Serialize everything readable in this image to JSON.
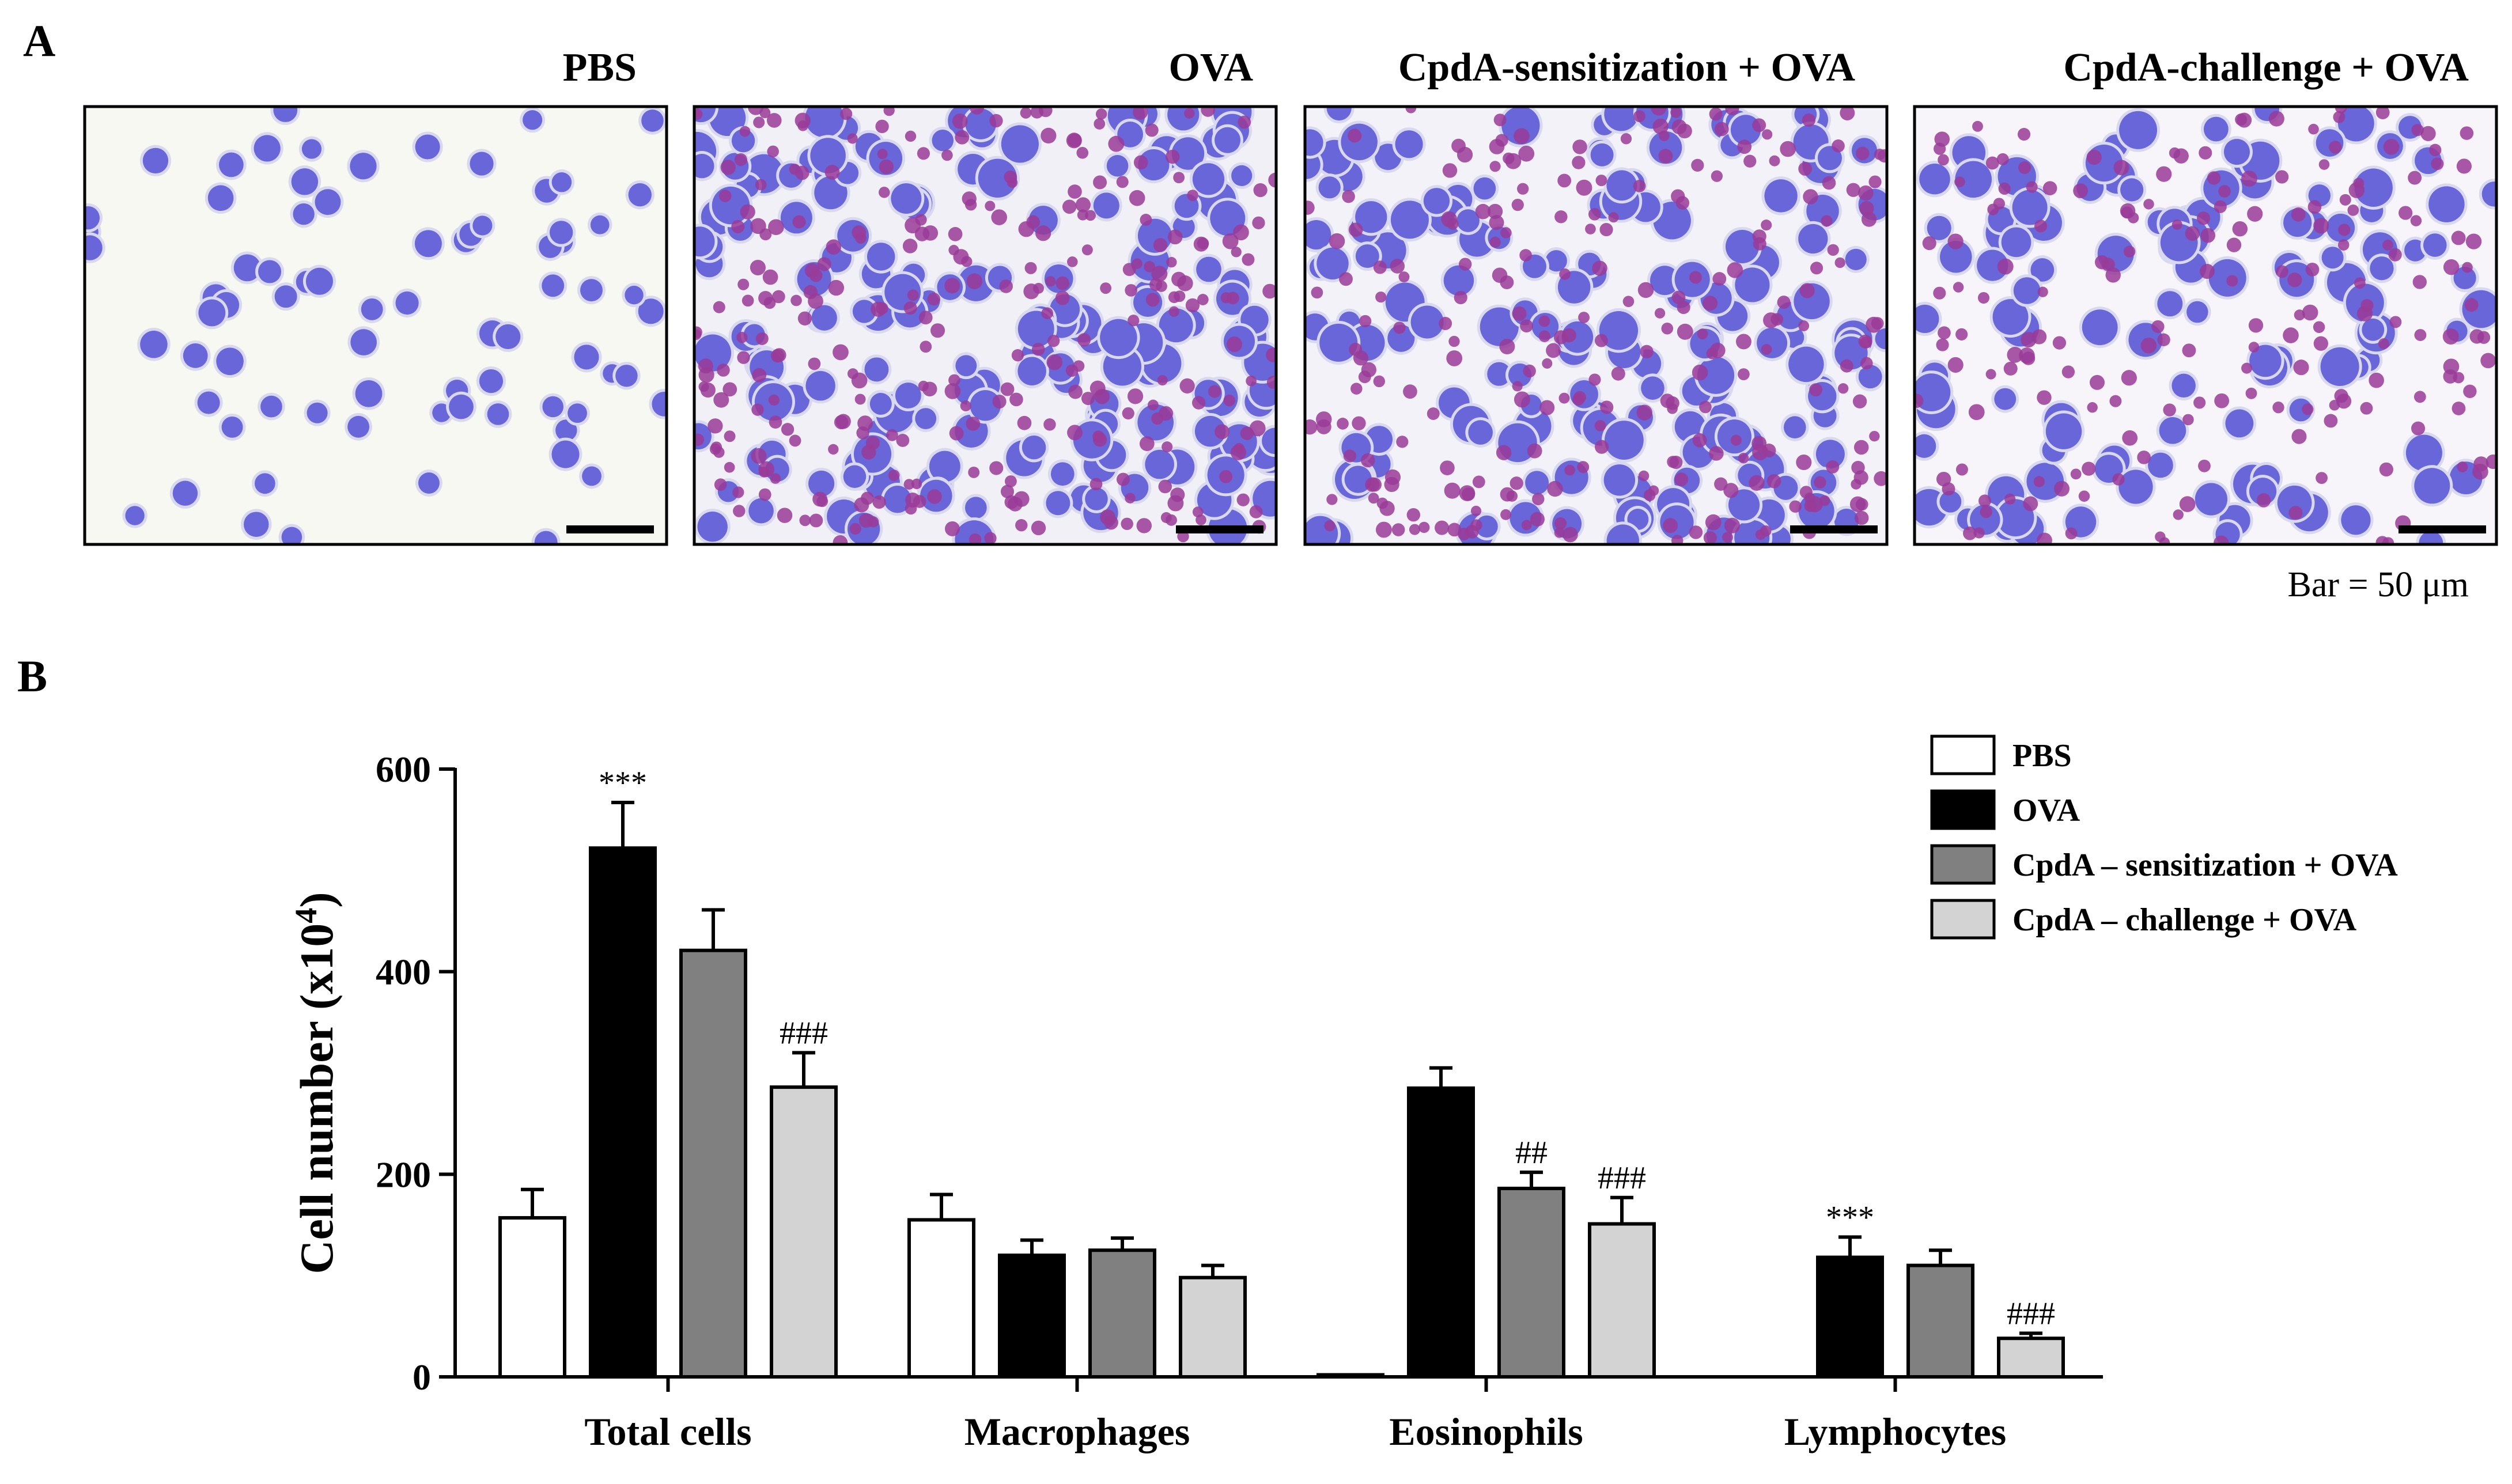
{
  "panel_a": {
    "letter": "A",
    "panels": [
      {
        "title": "PBS",
        "stain": "light"
      },
      {
        "title": "OVA",
        "stain": "dense"
      },
      {
        "title": "CpdA-sensitization + OVA",
        "stain": "dense"
      },
      {
        "title": "CpdA-challenge + OVA",
        "stain": "medium"
      }
    ],
    "scale_note": "Bar = 50 μm"
  },
  "panel_b": {
    "letter": "B"
  },
  "colors": {
    "PBS": "#ffffff",
    "OVA": "#000000",
    "CpdA_sensitization": "#808080",
    "CpdA_challenge": "#d3d3d3",
    "cell_violet": "#5c5ad6",
    "cell_magenta": "#9a3b98",
    "slide_bg": "#f6f8f1"
  },
  "chart_data": {
    "type": "bar",
    "title": "",
    "xlabel": "",
    "ylabel": "Cell number (x10",
    "ylabel_sup": "4",
    "ylabel_close": ")",
    "ylim": [
      0,
      600
    ],
    "yticks": [
      "0",
      "200",
      "400",
      "600"
    ],
    "ytick_values": [
      0,
      200,
      400,
      600
    ],
    "categories": [
      "Total cells",
      "Macrophages",
      "Eosinophils",
      "Lymphocytes"
    ],
    "series": [
      {
        "name": "PBS",
        "color": "#ffffff",
        "values": [
          157,
          155,
          2,
          0
        ],
        "errors": [
          28,
          25,
          0,
          0
        ],
        "labels": [
          "",
          "",
          "",
          ""
        ]
      },
      {
        "name": "OVA",
        "color": "#000000",
        "values": [
          522,
          120,
          285,
          118
        ],
        "errors": [
          45,
          15,
          20,
          20
        ],
        "labels": [
          "***",
          "",
          "",
          "***"
        ]
      },
      {
        "name": "CpdA – sensitization + OVA",
        "color": "#808080",
        "values": [
          421,
          125,
          186,
          110
        ],
        "errors": [
          40,
          12,
          16,
          15
        ],
        "labels": [
          "",
          "",
          "##",
          ""
        ]
      },
      {
        "name": "CpdA – challenge + OVA",
        "color": "#d3d3d3",
        "values": [
          286,
          98,
          151,
          38
        ],
        "errors": [
          34,
          12,
          26,
          5
        ],
        "labels": [
          "###",
          "",
          "###",
          "###"
        ]
      }
    ],
    "legend": [
      "PBS",
      "OVA",
      "CpdA – sensitization + OVA",
      "CpdA – challenge + OVA"
    ],
    "legend_position": "top-right",
    "grid": false
  }
}
